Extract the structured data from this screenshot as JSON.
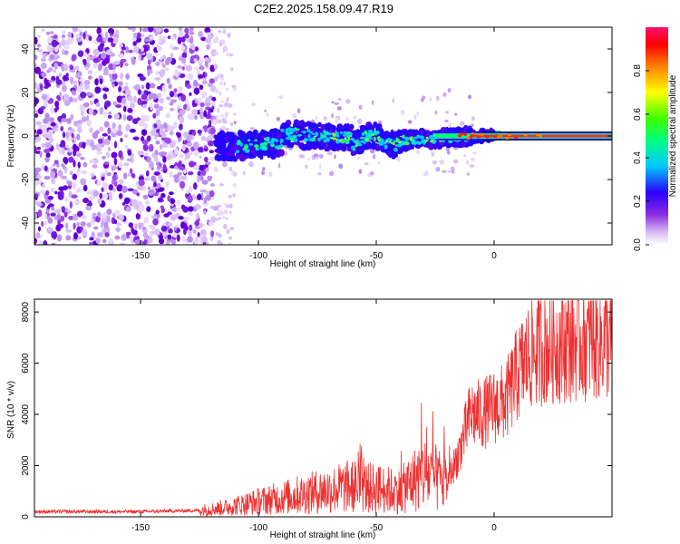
{
  "title": "C2E2.2025.158.09.47.R19",
  "chart_data": [
    {
      "type": "heatmap",
      "xlabel": "Height of straight line (km)",
      "ylabel": "Frequency (Hz)",
      "xlim": [
        -195,
        50
      ],
      "ylim": [
        -50,
        50
      ],
      "x_ticks": [
        -150,
        -100,
        -50,
        0
      ],
      "x_tick_labels": [
        "-150",
        "-100",
        "-50",
        "0"
      ],
      "y_ticks": [
        -40,
        -20,
        0,
        20,
        40
      ],
      "y_tick_labels": [
        "-40",
        "-20",
        "0",
        "20",
        "40"
      ],
      "colorbar": {
        "label": "Normalized spectral amplitude",
        "range": [
          0,
          1
        ],
        "ticks": [
          0.0,
          0.2,
          0.4,
          0.6,
          0.8
        ],
        "tick_labels": [
          "0.0",
          "0.2",
          "0.4",
          "0.6",
          "0.8"
        ],
        "colors": [
          "#ffffff",
          "#c9a0f0",
          "#7b1fe0",
          "#2a00ff",
          "#00e5ff",
          "#00ff40",
          "#ffff00",
          "#ff8000",
          "#ff0000",
          "#ff0080"
        ]
      },
      "features": {
        "noise_region_x": [
          -195,
          -118
        ],
        "band_center_frequency": 0,
        "band_x_range": [
          -118,
          50
        ],
        "constant_tone_x_range": [
          -5,
          50
        ],
        "outlier_points": [
          {
            "x": -19,
            "y": 21
          },
          {
            "x": -21,
            "y": 19
          }
        ]
      }
    },
    {
      "type": "line",
      "xlabel": "Height of straight line (km)",
      "ylabel": "SNR (10 * v/v)",
      "xlim": [
        -195,
        50
      ],
      "ylim": [
        0,
        8500
      ],
      "x_ticks": [
        -150,
        -100,
        -50,
        0
      ],
      "x_tick_labels": [
        "-150",
        "-100",
        "-50",
        "0"
      ],
      "y_ticks": [
        0,
        2000,
        4000,
        6000,
        8000
      ],
      "y_tick_labels": [
        "0",
        "2000",
        "4000",
        "6000",
        "8000"
      ],
      "color": "#ee3030",
      "trend": {
        "x": [
          -195,
          -150,
          -125,
          -115,
          -100,
          -80,
          -60,
          -40,
          -30,
          -20,
          -15,
          -10,
          -5,
          0,
          5,
          10,
          15,
          20,
          30,
          40,
          50
        ],
        "y": [
          200,
          200,
          250,
          350,
          600,
          900,
          1200,
          1000,
          1700,
          1300,
          2500,
          4000,
          4000,
          4300,
          4500,
          5600,
          6300,
          6600,
          6800,
          6900,
          6900
        ]
      }
    }
  ]
}
